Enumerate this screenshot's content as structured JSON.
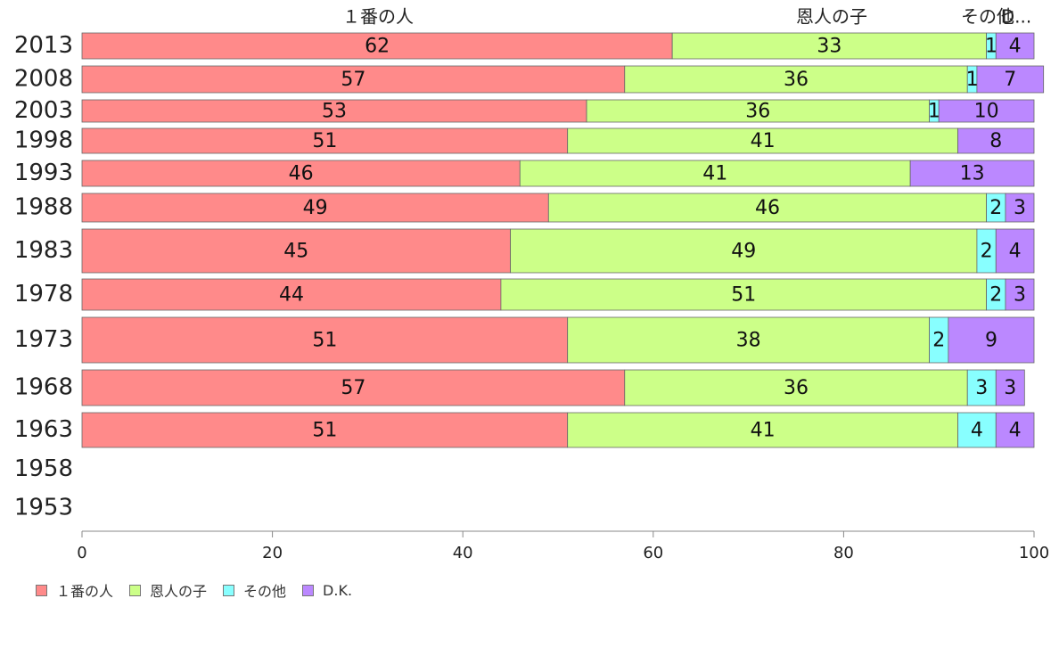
{
  "chart_data": {
    "type": "bar",
    "orientation": "horizontal",
    "stacked": true,
    "title": "",
    "xlabel": "",
    "ylabel": "",
    "xlim": [
      0,
      100
    ],
    "x_ticks": [
      0,
      20,
      40,
      60,
      80,
      100
    ],
    "grid": false,
    "legend_position": "bottom-left",
    "top_labels": [
      "１番の人",
      "恩人の子",
      "その他",
      "D..."
    ],
    "categories": [
      "2013",
      "2008",
      "2003",
      "1998",
      "1993",
      "1988",
      "1983",
      "1978",
      "1973",
      "1968",
      "1963",
      "1958",
      "1953"
    ],
    "series": [
      {
        "name": "１番の人",
        "color": "#ff8a8a",
        "values": [
          62,
          57,
          53,
          51,
          46,
          49,
          45,
          44,
          51,
          57,
          51,
          null,
          null
        ]
      },
      {
        "name": "恩人の子",
        "color": "#ccff88",
        "values": [
          33,
          36,
          36,
          41,
          41,
          46,
          49,
          51,
          38,
          36,
          41,
          null,
          null
        ]
      },
      {
        "name": "その他",
        "color": "#88ffff",
        "values": [
          1,
          1,
          1,
          0,
          0,
          2,
          2,
          2,
          2,
          3,
          4,
          null,
          null
        ]
      },
      {
        "name": "D.K.",
        "color": "#bb88ff",
        "values": [
          4,
          7,
          10,
          8,
          13,
          3,
          4,
          3,
          9,
          3,
          4,
          null,
          null
        ]
      }
    ]
  }
}
